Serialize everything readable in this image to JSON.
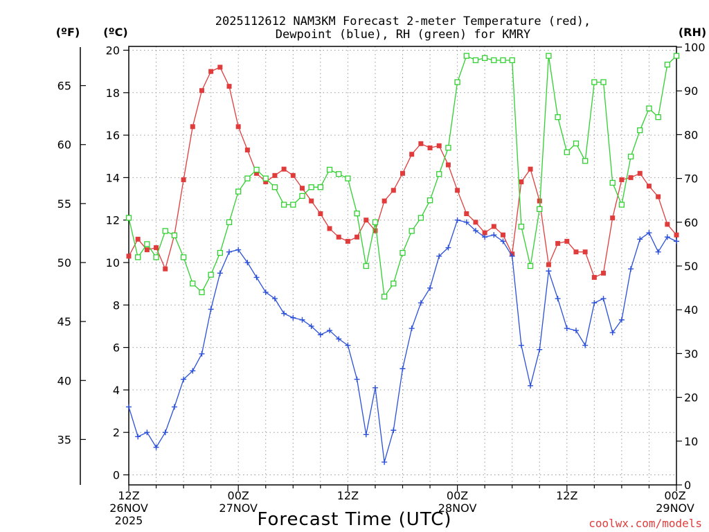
{
  "chart_data": {
    "type": "line",
    "title_line1": "2025112612 NAM3KM Forecast 2-meter Temperature (red),",
    "title_line2": "Dewpoint (blue), RH (green) for KMRY",
    "xlabel": "Forecast Time (UTC)",
    "credit": "coolwx.com/models",
    "unit_f": "(ºF)",
    "unit_c": "(ºC)",
    "unit_rh": "(RH)",
    "x_ticks": [
      {
        "hour": 0,
        "l1": "12Z",
        "l2": "26NOV",
        "l3": "2025"
      },
      {
        "hour": 12,
        "l1": "00Z",
        "l2": "27NOV",
        "l3": ""
      },
      {
        "hour": 24,
        "l1": "12Z",
        "l2": "",
        "l3": ""
      },
      {
        "hour": 36,
        "l1": "00Z",
        "l2": "28NOV",
        "l3": ""
      },
      {
        "hour": 48,
        "l1": "12Z",
        "l2": "",
        "l3": ""
      },
      {
        "hour": 60,
        "l1": "00Z",
        "l2": "29NOV",
        "l3": ""
      }
    ],
    "c_ticks": [
      "0",
      "2",
      "4",
      "6",
      "8",
      "10",
      "12",
      "14",
      "16",
      "18",
      "20"
    ],
    "f_ticks": [
      "35",
      "40",
      "45",
      "50",
      "55",
      "60",
      "65"
    ],
    "rh_ticks": [
      "0",
      "10",
      "20",
      "30",
      "40",
      "50",
      "60",
      "70",
      "80",
      "90",
      "100"
    ],
    "ylim_c": [
      -0.5,
      20.1
    ],
    "ylim_rh": [
      0,
      100
    ],
    "xlim_hours": [
      0,
      60
    ],
    "x_hours": [
      0,
      1,
      2,
      3,
      4,
      5,
      6,
      7,
      8,
      9,
      10,
      11,
      12,
      13,
      14,
      15,
      16,
      17,
      18,
      19,
      20,
      21,
      22,
      23,
      24,
      25,
      26,
      27,
      28,
      29,
      30,
      31,
      32,
      33,
      34,
      35,
      36,
      37,
      38,
      39,
      40,
      41,
      42,
      43,
      44,
      45,
      46,
      47,
      48,
      49,
      50,
      51,
      52,
      53,
      54,
      55,
      56,
      57,
      58,
      59,
      60
    ],
    "series": [
      {
        "name": "2-meter Temperature",
        "unit": "degC",
        "color": "#e03c3c",
        "marker": "filled-square",
        "values": [
          10.3,
          11.1,
          10.6,
          10.7,
          9.7,
          11.3,
          13.9,
          16.4,
          18.1,
          19.0,
          19.2,
          18.3,
          16.4,
          15.3,
          14.2,
          13.8,
          14.1,
          14.4,
          14.1,
          13.5,
          12.9,
          12.3,
          11.6,
          11.2,
          11.0,
          11.2,
          12.0,
          11.5,
          12.9,
          13.4,
          14.2,
          15.1,
          15.6,
          15.4,
          15.5,
          14.6,
          13.4,
          12.3,
          11.9,
          11.4,
          11.7,
          11.3,
          10.4,
          13.8,
          14.4,
          12.9,
          9.9,
          10.9,
          11.0,
          10.5,
          10.5,
          9.3,
          9.5,
          12.1,
          13.9,
          14.0,
          14.2,
          13.6,
          13.1,
          11.8,
          11.3
        ]
      },
      {
        "name": "Dewpoint",
        "unit": "degC",
        "color": "#2a4fd8",
        "marker": "plus",
        "values": [
          3.2,
          1.8,
          2.0,
          1.3,
          2.0,
          3.2,
          4.5,
          4.9,
          5.7,
          7.8,
          9.5,
          10.5,
          10.6,
          10.0,
          9.3,
          8.6,
          8.3,
          7.6,
          7.4,
          7.3,
          7.0,
          6.6,
          6.8,
          6.4,
          6.1,
          4.5,
          1.9,
          4.1,
          0.6,
          2.1,
          5.0,
          6.9,
          8.1,
          8.8,
          10.3,
          10.7,
          12.0,
          11.9,
          11.5,
          11.2,
          11.3,
          11.0,
          10.3,
          6.1,
          4.2,
          5.9,
          9.6,
          8.3,
          6.9,
          6.8,
          6.1,
          8.1,
          8.3,
          6.7,
          7.3,
          9.7,
          11.1,
          11.4,
          10.5,
          11.2,
          11.0
        ]
      },
      {
        "name": "RH",
        "unit": "percent",
        "color": "#2fd02f",
        "marker": "open-square",
        "values": [
          61,
          52,
          55,
          52,
          58,
          57,
          52,
          46,
          44,
          48,
          53,
          60,
          67,
          70,
          72,
          70,
          68,
          64,
          64,
          66,
          68,
          68,
          72,
          71,
          70,
          62,
          50,
          60,
          43,
          46,
          53,
          58,
          61,
          65,
          71,
          77,
          92,
          98,
          97,
          97.5,
          97,
          97,
          97,
          59,
          50,
          63,
          98,
          84,
          76,
          78,
          74,
          92,
          92,
          69,
          64,
          75,
          81,
          86,
          84,
          96,
          98
        ]
      }
    ]
  }
}
